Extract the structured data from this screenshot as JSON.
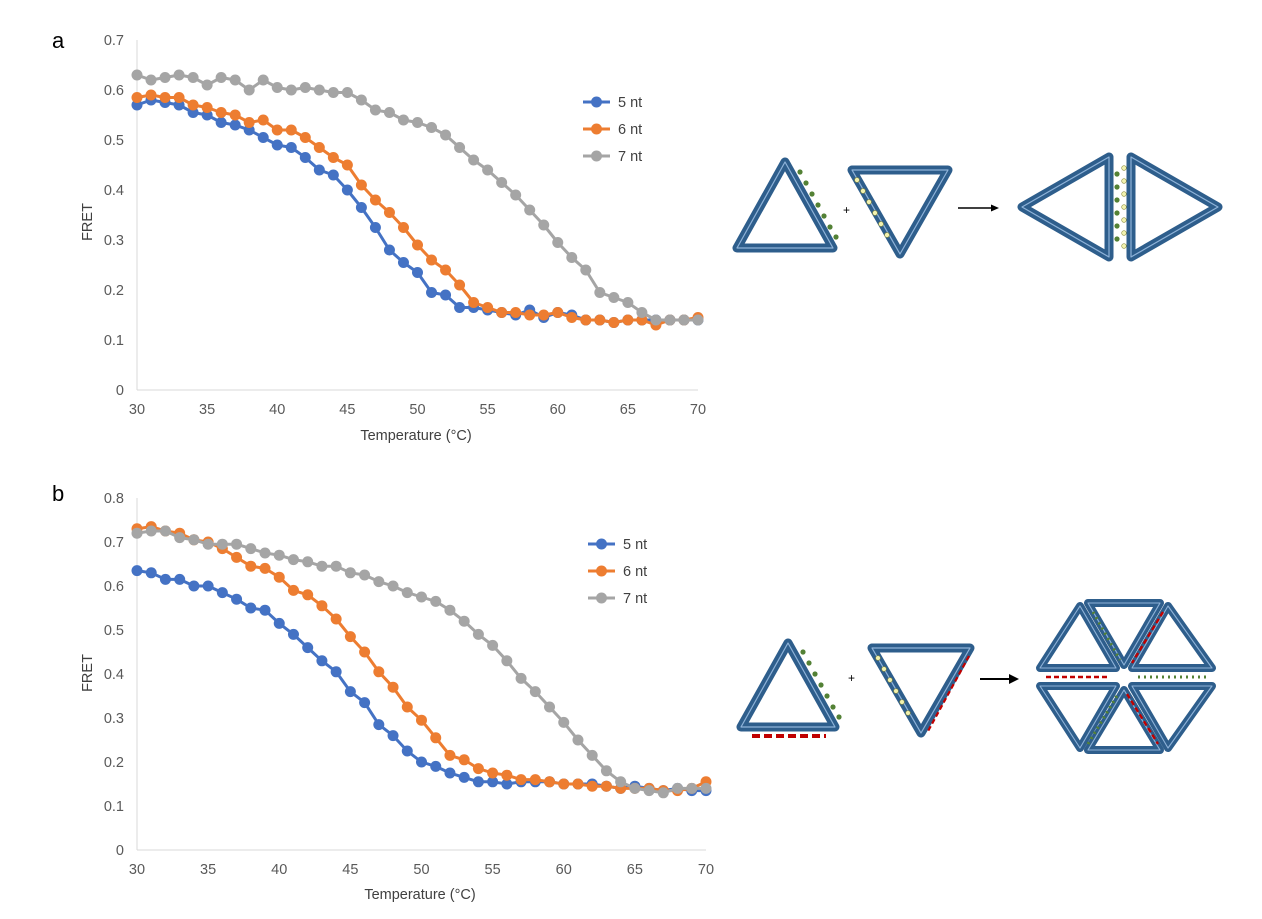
{
  "panels": [
    {
      "label": "a"
    },
    {
      "label": "b"
    }
  ],
  "colors": {
    "5 nt": "#4472C4",
    "6 nt": "#ED7D31",
    "7 nt": "#A5A5A5",
    "axis": "#D9D9D9",
    "origami": "#2E5E8C",
    "green_staple": "#538135",
    "red_staple": "#C00000"
  },
  "chart_data": [
    {
      "type": "line",
      "xlabel": "Temperature (°C)",
      "ylabel": "FRET",
      "xlim": [
        30,
        70
      ],
      "ylim": [
        0,
        0.7
      ],
      "x_ticks": [
        "30",
        "35",
        "40",
        "45",
        "50",
        "55",
        "60",
        "65",
        "70"
      ],
      "y_ticks": [
        "0",
        "0.1",
        "0.2",
        "0.3",
        "0.4",
        "0.5",
        "0.6",
        "0.7"
      ],
      "grid": false,
      "legend": "top-right",
      "x": [
        30,
        31,
        32,
        33,
        34,
        35,
        36,
        37,
        38,
        39,
        40,
        41,
        42,
        43,
        44,
        45,
        46,
        47,
        48,
        49,
        50,
        51,
        52,
        53,
        54,
        55,
        56,
        57,
        58,
        59,
        60,
        61,
        62,
        63,
        64,
        65,
        66,
        67,
        68,
        69,
        70
      ],
      "series": [
        {
          "name": "5 nt",
          "values": [
            0.57,
            0.58,
            0.575,
            0.57,
            0.555,
            0.55,
            0.535,
            0.53,
            0.52,
            0.505,
            0.49,
            0.485,
            0.465,
            0.44,
            0.43,
            0.4,
            0.365,
            0.325,
            0.28,
            0.255,
            0.235,
            0.195,
            0.19,
            0.165,
            0.165,
            0.16,
            0.155,
            0.15,
            0.16,
            0.145,
            0.155,
            0.15,
            0.14,
            0.14,
            0.135,
            0.14,
            0.14,
            0.14,
            0.14,
            0.14,
            0.14
          ]
        },
        {
          "name": "6 nt",
          "values": [
            0.585,
            0.59,
            0.585,
            0.585,
            0.57,
            0.565,
            0.555,
            0.55,
            0.535,
            0.54,
            0.52,
            0.52,
            0.505,
            0.485,
            0.465,
            0.45,
            0.41,
            0.38,
            0.355,
            0.325,
            0.29,
            0.26,
            0.24,
            0.21,
            0.175,
            0.165,
            0.155,
            0.155,
            0.15,
            0.15,
            0.155,
            0.145,
            0.14,
            0.14,
            0.135,
            0.14,
            0.14,
            0.13,
            0.14,
            0.14,
            0.145
          ]
        },
        {
          "name": "7 nt",
          "values": [
            0.63,
            0.62,
            0.625,
            0.63,
            0.625,
            0.61,
            0.625,
            0.62,
            0.6,
            0.62,
            0.605,
            0.6,
            0.605,
            0.6,
            0.595,
            0.595,
            0.58,
            0.56,
            0.555,
            0.54,
            0.535,
            0.525,
            0.51,
            0.485,
            0.46,
            0.44,
            0.415,
            0.39,
            0.36,
            0.33,
            0.295,
            0.265,
            0.24,
            0.195,
            0.185,
            0.175,
            0.155,
            0.14,
            0.14,
            0.14,
            0.14
          ]
        }
      ]
    },
    {
      "type": "line",
      "xlabel": "Temperature (°C)",
      "ylabel": "FRET",
      "xlim": [
        30,
        70
      ],
      "ylim": [
        0,
        0.8
      ],
      "x_ticks": [
        "30",
        "35",
        "40",
        "45",
        "50",
        "55",
        "60",
        "65",
        "70"
      ],
      "y_ticks": [
        "0",
        "0.1",
        "0.2",
        "0.3",
        "0.4",
        "0.5",
        "0.6",
        "0.7",
        "0.8"
      ],
      "grid": false,
      "legend": "top-right",
      "x": [
        30,
        31,
        32,
        33,
        34,
        35,
        36,
        37,
        38,
        39,
        40,
        41,
        42,
        43,
        44,
        45,
        46,
        47,
        48,
        49,
        50,
        51,
        52,
        53,
        54,
        55,
        56,
        57,
        58,
        59,
        60,
        61,
        62,
        63,
        64,
        65,
        66,
        67,
        68,
        69,
        70
      ],
      "series": [
        {
          "name": "5 nt",
          "values": [
            0.635,
            0.63,
            0.615,
            0.615,
            0.6,
            0.6,
            0.585,
            0.57,
            0.55,
            0.545,
            0.515,
            0.49,
            0.46,
            0.43,
            0.405,
            0.36,
            0.335,
            0.285,
            0.26,
            0.225,
            0.2,
            0.19,
            0.175,
            0.165,
            0.155,
            0.155,
            0.15,
            0.155,
            0.155,
            0.155,
            0.15,
            0.15,
            0.15,
            0.145,
            0.14,
            0.145,
            0.14,
            0.135,
            0.14,
            0.135,
            0.135
          ]
        },
        {
          "name": "6 nt",
          "values": [
            0.73,
            0.735,
            0.725,
            0.72,
            0.705,
            0.7,
            0.685,
            0.665,
            0.645,
            0.64,
            0.62,
            0.59,
            0.58,
            0.555,
            0.525,
            0.485,
            0.45,
            0.405,
            0.37,
            0.325,
            0.295,
            0.255,
            0.215,
            0.205,
            0.185,
            0.175,
            0.17,
            0.16,
            0.16,
            0.155,
            0.15,
            0.15,
            0.145,
            0.145,
            0.14,
            0.14,
            0.14,
            0.135,
            0.135,
            0.14,
            0.155
          ]
        },
        {
          "name": "7 nt",
          "values": [
            0.72,
            0.725,
            0.725,
            0.71,
            0.705,
            0.695,
            0.695,
            0.695,
            0.685,
            0.675,
            0.67,
            0.66,
            0.655,
            0.645,
            0.645,
            0.63,
            0.625,
            0.61,
            0.6,
            0.585,
            0.575,
            0.565,
            0.545,
            0.52,
            0.49,
            0.465,
            0.43,
            0.39,
            0.36,
            0.325,
            0.29,
            0.25,
            0.215,
            0.18,
            0.155,
            0.14,
            0.135,
            0.13,
            0.14,
            0.14,
            0.14
          ]
        }
      ]
    }
  ],
  "schematics": [
    {
      "name": "dimer",
      "operator": "+"
    },
    {
      "name": "hexamer",
      "operator": "+"
    }
  ]
}
